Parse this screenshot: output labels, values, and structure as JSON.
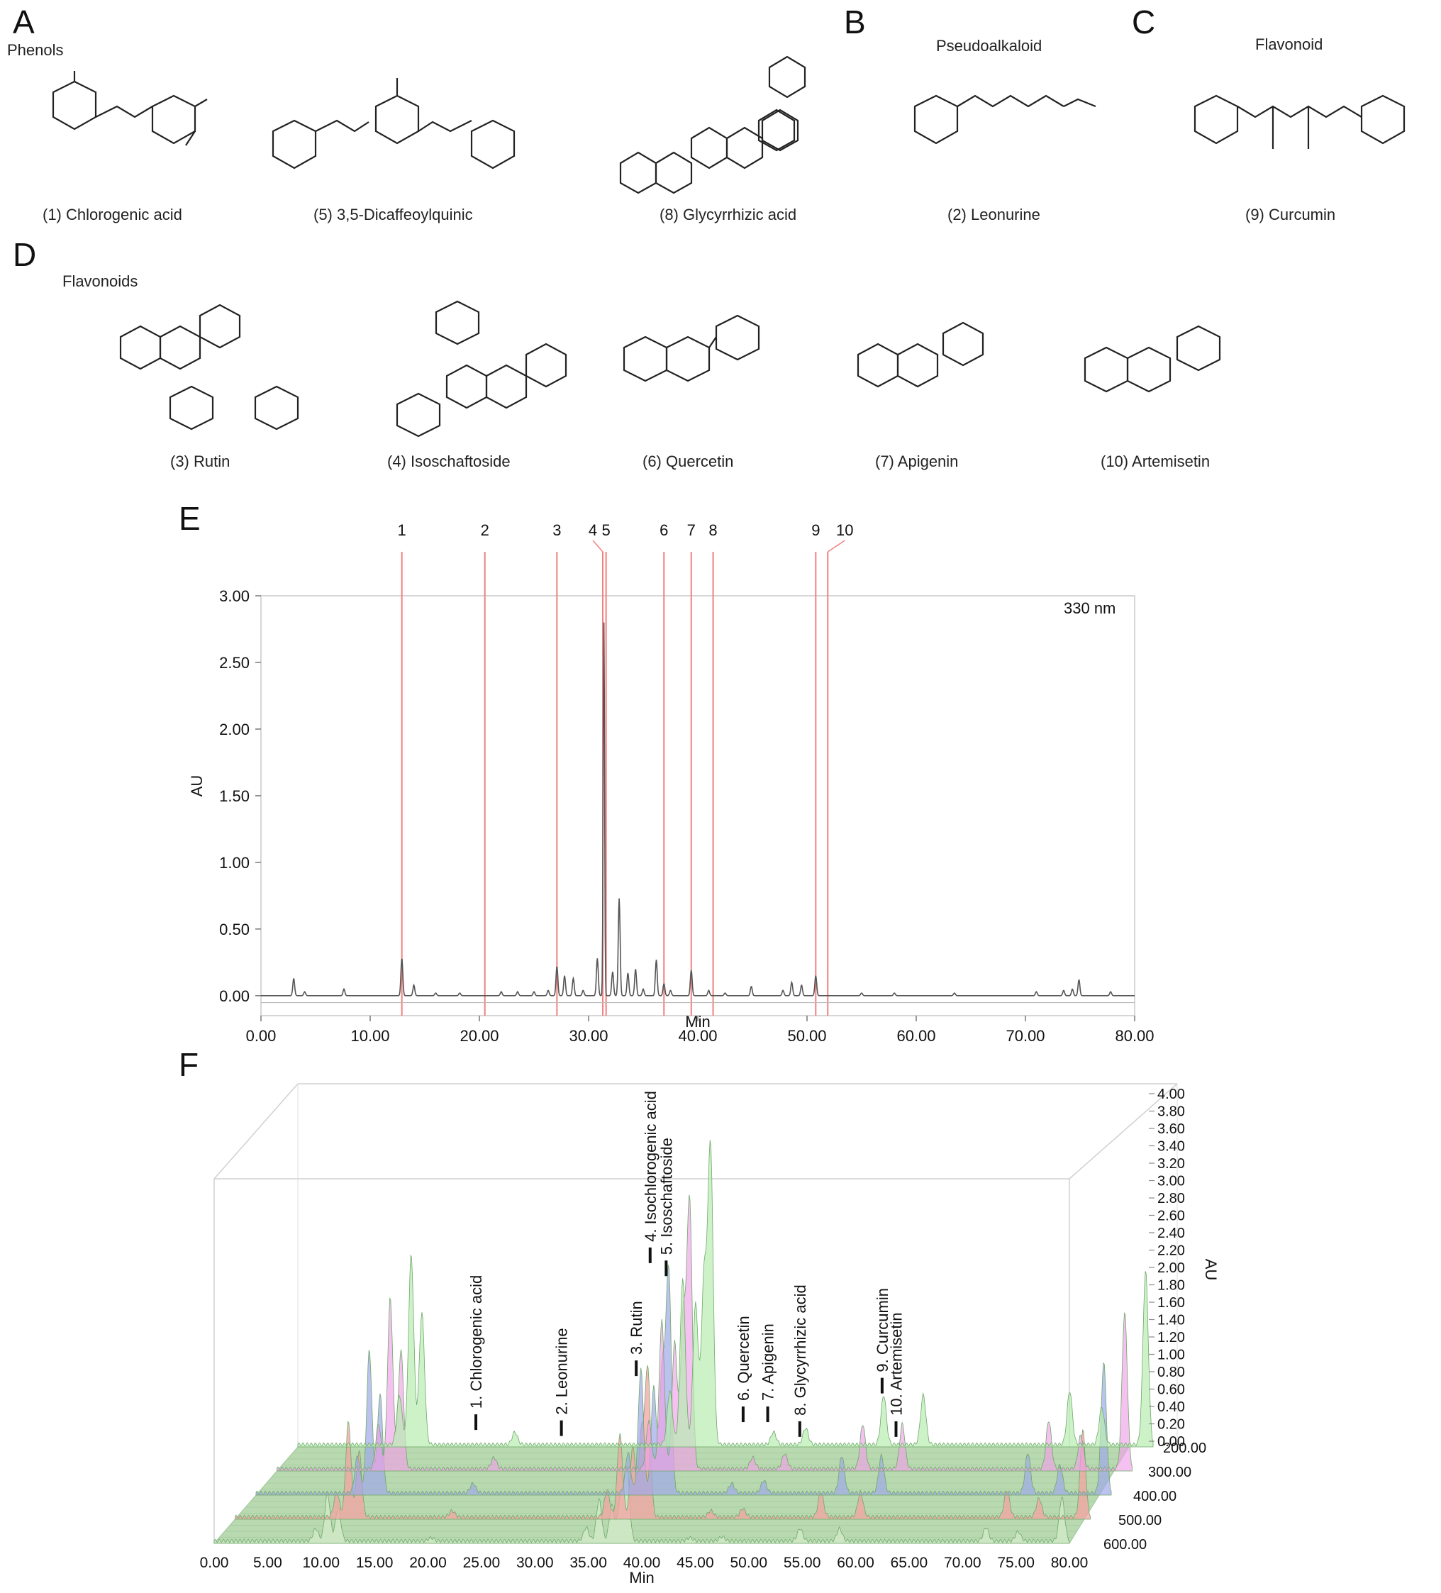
{
  "panels": {
    "A": {
      "letter": "A",
      "group": "Phenols",
      "compounds": [
        "(1) Chlorogenic acid",
        "(5) 3,5-Dicaffeoylquinic",
        "(8) Glycyrrhizic acid"
      ]
    },
    "B": {
      "letter": "B",
      "group": "Pseudoalkaloid",
      "compounds": [
        "(2) Leonurine"
      ]
    },
    "C": {
      "letter": "C",
      "group": "Flavonoid",
      "compounds": [
        "(9) Curcumin"
      ]
    },
    "D": {
      "letter": "D",
      "group": "Flavonoids",
      "compounds": [
        "(3) Rutin",
        "(4) Isoschaftoside",
        "(6) Quercetin",
        "(7) Apigenin",
        "(10) Artemisetin"
      ]
    },
    "E": {
      "letter": "E"
    },
    "F": {
      "letter": "F"
    }
  },
  "chart_data": [
    {
      "type": "line",
      "panel": "E",
      "annotation": "330 nm",
      "xlabel": "Min",
      "ylabel": "AU",
      "xlim": [
        0,
        80
      ],
      "ylim": [
        -0.15,
        3.0
      ],
      "xticks": [
        "0.00",
        "10.00",
        "20.00",
        "30.00",
        "40.00",
        "50.00",
        "60.00",
        "70.00",
        "80.00"
      ],
      "yticks": [
        "0.00",
        "0.50",
        "1.00",
        "1.50",
        "2.00",
        "2.50",
        "3.00"
      ],
      "markers": [
        {
          "label": "1",
          "x": 12.9
        },
        {
          "label": "2",
          "x": 20.5
        },
        {
          "label": "3",
          "x": 27.1
        },
        {
          "label": "4",
          "x": 31.3
        },
        {
          "label": "5",
          "x": 31.6
        },
        {
          "label": "6",
          "x": 36.9
        },
        {
          "label": "7",
          "x": 39.4
        },
        {
          "label": "8",
          "x": 41.4
        },
        {
          "label": "9",
          "x": 50.8
        },
        {
          "label": "10",
          "x": 51.9
        }
      ],
      "peaks": [
        {
          "x": 3.0,
          "y": 0.13
        },
        {
          "x": 4.0,
          "y": 0.03
        },
        {
          "x": 7.6,
          "y": 0.05
        },
        {
          "x": 12.9,
          "y": 0.28
        },
        {
          "x": 14.0,
          "y": 0.08
        },
        {
          "x": 16.0,
          "y": 0.02
        },
        {
          "x": 18.2,
          "y": 0.02
        },
        {
          "x": 22.0,
          "y": 0.03
        },
        {
          "x": 23.5,
          "y": 0.03
        },
        {
          "x": 25.0,
          "y": 0.03
        },
        {
          "x": 26.3,
          "y": 0.04
        },
        {
          "x": 27.1,
          "y": 0.22
        },
        {
          "x": 27.8,
          "y": 0.15
        },
        {
          "x": 28.6,
          "y": 0.13
        },
        {
          "x": 29.5,
          "y": 0.04
        },
        {
          "x": 30.8,
          "y": 0.28
        },
        {
          "x": 31.4,
          "y": 2.8
        },
        {
          "x": 32.2,
          "y": 0.18
        },
        {
          "x": 32.8,
          "y": 0.73
        },
        {
          "x": 33.6,
          "y": 0.17
        },
        {
          "x": 34.3,
          "y": 0.2
        },
        {
          "x": 35.0,
          "y": 0.05
        },
        {
          "x": 36.2,
          "y": 0.27
        },
        {
          "x": 36.9,
          "y": 0.09
        },
        {
          "x": 37.5,
          "y": 0.04
        },
        {
          "x": 39.4,
          "y": 0.19
        },
        {
          "x": 41.0,
          "y": 0.04
        },
        {
          "x": 42.5,
          "y": 0.02
        },
        {
          "x": 44.9,
          "y": 0.07
        },
        {
          "x": 47.8,
          "y": 0.04
        },
        {
          "x": 48.6,
          "y": 0.1
        },
        {
          "x": 49.5,
          "y": 0.08
        },
        {
          "x": 50.8,
          "y": 0.15
        },
        {
          "x": 55.0,
          "y": 0.02
        },
        {
          "x": 58.0,
          "y": 0.02
        },
        {
          "x": 63.5,
          "y": 0.02
        },
        {
          "x": 71.0,
          "y": 0.03
        },
        {
          "x": 73.5,
          "y": 0.04
        },
        {
          "x": 74.3,
          "y": 0.05
        },
        {
          "x": 74.9,
          "y": 0.12
        },
        {
          "x": 77.8,
          "y": 0.03
        }
      ]
    },
    {
      "type": "area",
      "panel": "F",
      "xlabel": "Min",
      "ylabel": "AU",
      "xlim": [
        0,
        80
      ],
      "zlim": [
        0,
        4
      ],
      "xticks": [
        "0.00",
        "5.00",
        "10.00",
        "15.00",
        "20.00",
        "25.00",
        "30.00",
        "35.00",
        "40.00",
        "45.00",
        "50.00",
        "55.00",
        "60.00",
        "65.00",
        "70.00",
        "75.00",
        "80.00"
      ],
      "zticks": [
        "0.00",
        "0.20",
        "0.40",
        "0.60",
        "0.80",
        "1.00",
        "1.20",
        "1.40",
        "1.60",
        "1.80",
        "2.00",
        "2.20",
        "2.40",
        "2.60",
        "2.80",
        "3.00",
        "3.20",
        "3.40",
        "3.60",
        "3.80",
        "4.00"
      ],
      "depth_ticks": [
        "200.00",
        "300.00",
        "400.00",
        "500.00",
        "600.00"
      ],
      "labels": [
        {
          "text": "1. Chlorogenic acid",
          "x": 20.5
        },
        {
          "text": "2. Leonurine",
          "x": 28.5
        },
        {
          "text": "3. Rutin",
          "x": 35.5
        },
        {
          "text": "4. Isochlorogenic acid",
          "x": 36.8
        },
        {
          "text": "5. Isoschaftoside",
          "x": 38.3
        },
        {
          "text": "6. Quercetin",
          "x": 45.5
        },
        {
          "text": "7. Apigenin",
          "x": 47.8
        },
        {
          "text": "8. Glycyrrhizic acid",
          "x": 50.8
        },
        {
          "text": "9. Curcumin",
          "x": 58.5
        },
        {
          "text": "10. Artemisetin",
          "x": 59.8
        }
      ],
      "peaks": [
        {
          "x": 9.5,
          "y": 0.6
        },
        {
          "x": 10.6,
          "y": 2.3
        },
        {
          "x": 11.6,
          "y": 1.6
        },
        {
          "x": 20.3,
          "y": 0.15
        },
        {
          "x": 34.8,
          "y": 0.65
        },
        {
          "x": 36.0,
          "y": 2.0
        },
        {
          "x": 37.2,
          "y": 1.7
        },
        {
          "x": 38.0,
          "y": 2.0
        },
        {
          "x": 38.6,
          "y": 3.6
        },
        {
          "x": 44.5,
          "y": 0.15
        },
        {
          "x": 47.5,
          "y": 0.2
        },
        {
          "x": 54.8,
          "y": 0.6
        },
        {
          "x": 58.5,
          "y": 0.6
        },
        {
          "x": 72.2,
          "y": 0.65
        },
        {
          "x": 75.2,
          "y": 0.45
        },
        {
          "x": 79.3,
          "y": 2.1
        },
        {
          "x": 81.3,
          "y": 1.4
        }
      ]
    }
  ]
}
